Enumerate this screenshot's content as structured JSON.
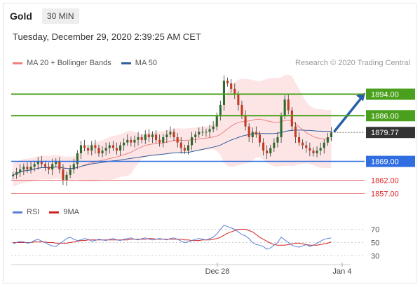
{
  "header": {
    "symbol": "Gold",
    "timeframe": "30 MIN"
  },
  "timestamp": "Tuesday, December 29, 2020 2:39:25 AM CET",
  "credit": "Research © 2020 Trading Central",
  "legend_main": [
    {
      "label": "MA 20 + Bollinger Bands",
      "color": "#f08080"
    },
    {
      "label": "MA 50",
      "color": "#2f5f9e"
    }
  ],
  "legend_rsi": [
    {
      "label": "RSI",
      "color": "#5b7fd6"
    },
    {
      "label": "9MA",
      "color": "#d42020"
    }
  ],
  "colors": {
    "resistance": "#4aa01c",
    "support_pivot": "#2f6de0",
    "support": "#e06060",
    "last": "#333333",
    "arrow": "#2a5ea8"
  },
  "chart_data": [
    {
      "type": "candlestick",
      "title": "Gold",
      "timeframe": "30 MIN",
      "x_ticks": [
        "Dec 28",
        "Jan 4"
      ],
      "ylim": [
        1853,
        1903
      ],
      "levels": [
        {
          "label": "1894.00",
          "value": 1894.0,
          "kind": "resistance"
        },
        {
          "label": "1886.00",
          "value": 1886.0,
          "kind": "resistance"
        },
        {
          "label": "1879.77",
          "value": 1879.77,
          "kind": "last"
        },
        {
          "label": "1869.00",
          "value": 1869.0,
          "kind": "pivot"
        },
        {
          "label": "1862.00",
          "value": 1862.0,
          "kind": "support"
        },
        {
          "label": "1857.00",
          "value": 1857.0,
          "kind": "support"
        }
      ],
      "close_approx": [
        1864,
        1865,
        1866,
        1867,
        1866,
        1867,
        1868,
        1869,
        1868,
        1867,
        1866,
        1868,
        1869,
        1866,
        1862,
        1864,
        1866,
        1868,
        1872,
        1875,
        1874,
        1873,
        1875,
        1874,
        1872,
        1873,
        1874,
        1875,
        1874,
        1873,
        1875,
        1876,
        1877,
        1876,
        1877,
        1878,
        1877,
        1879,
        1878,
        1879,
        1877,
        1876,
        1878,
        1879,
        1880,
        1878,
        1876,
        1874,
        1873,
        1875,
        1878,
        1879,
        1880,
        1880,
        1880,
        1881,
        1882,
        1886,
        1890,
        1899,
        1898,
        1896,
        1894,
        1890,
        1886,
        1882,
        1878,
        1880,
        1879,
        1876,
        1873,
        1872,
        1874,
        1876,
        1878,
        1886,
        1892,
        1888,
        1882,
        1878,
        1876,
        1875,
        1874,
        1873,
        1872,
        1873,
        1874,
        1876,
        1878,
        1879.77
      ]
    },
    {
      "type": "line",
      "title": "RSI",
      "series": [
        {
          "name": "RSI"
        },
        {
          "name": "9MA"
        }
      ],
      "y_ticks": [
        70,
        50,
        30
      ],
      "ylim": [
        20,
        80
      ],
      "rsi": [
        48,
        50,
        52,
        51,
        49,
        50,
        53,
        55,
        52,
        50,
        47,
        45,
        44,
        48,
        52,
        56,
        58,
        55,
        53,
        54,
        56,
        55,
        52,
        53,
        55,
        54,
        53,
        55,
        56,
        54,
        53,
        55,
        56,
        57,
        55,
        54,
        56,
        57,
        55,
        54,
        55,
        56,
        55,
        54,
        56,
        57,
        55,
        52,
        50,
        51,
        53,
        55,
        56,
        55,
        54,
        56,
        58,
        63,
        70,
        76,
        74,
        72,
        70,
        66,
        62,
        60,
        56,
        50,
        47,
        46,
        44,
        40,
        42,
        46,
        50,
        58,
        54,
        50,
        46,
        44,
        43,
        45,
        47,
        44,
        46,
        49,
        52,
        55,
        56,
        57
      ],
      "ma9": [
        50,
        50,
        50,
        50,
        50,
        50,
        51,
        51,
        51,
        51,
        50,
        50,
        49,
        49,
        49,
        49,
        50,
        51,
        52,
        53,
        53,
        54,
        54,
        54,
        54,
        54,
        54,
        54,
        54,
        54,
        54,
        54,
        54,
        55,
        55,
        55,
        55,
        55,
        56,
        56,
        55,
        55,
        55,
        55,
        55,
        55,
        55,
        55,
        54,
        54,
        53,
        53,
        53,
        54,
        54,
        54,
        55,
        56,
        58,
        61,
        64,
        66,
        68,
        70,
        70,
        70,
        68,
        66,
        62,
        58,
        55,
        52,
        49,
        47,
        46,
        46,
        46,
        47,
        48,
        49,
        49,
        48,
        47,
        46,
        46,
        46,
        47,
        48,
        49,
        51
      ]
    }
  ]
}
